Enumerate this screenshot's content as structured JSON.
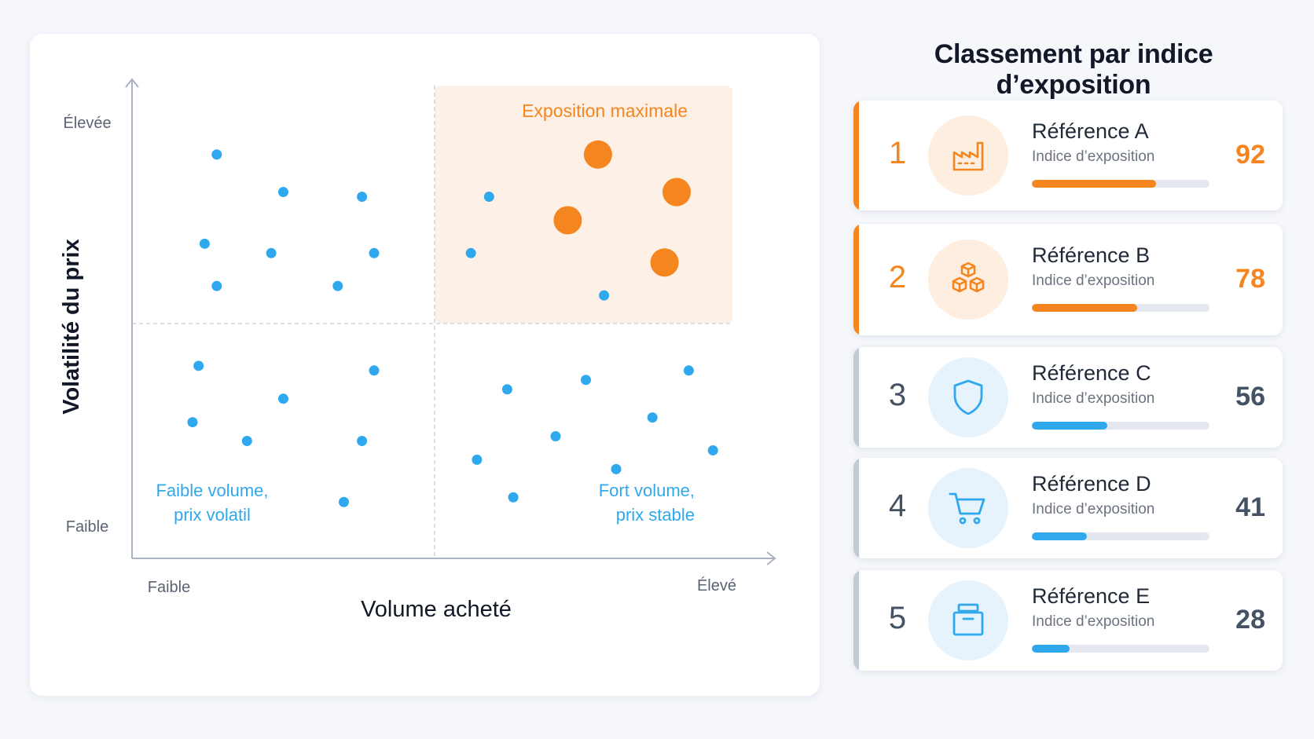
{
  "colors": {
    "accent": "#f5851f",
    "point": "#2fa8ee",
    "highlight_zone": "#fdf0e6",
    "neutral": "#455263",
    "axis": "#aab3c2"
  },
  "chart_data": {
    "type": "scatter",
    "xlabel": "Volume acheté",
    "ylabel": "Volatilité du prix",
    "x_ticks": [
      "Faible",
      "Élevé"
    ],
    "y_ticks": [
      "Élevée",
      "Faible"
    ],
    "xlim": [
      0,
      100
    ],
    "ylim": [
      0,
      100
    ],
    "grid": false,
    "quadrant_split": {
      "x": 50,
      "y": 50
    },
    "quadrant_labels": {
      "top_right": "Exposition maximale",
      "bottom_left_line1": "Faible volume,",
      "bottom_left_line2": "prix volatil",
      "bottom_right_line1": "Fort volume,",
      "bottom_right_line2": "prix stable"
    },
    "series": [
      {
        "role": "standard",
        "points": [
          [
            14,
            86
          ],
          [
            25,
            78
          ],
          [
            38,
            77
          ],
          [
            12,
            67
          ],
          [
            23,
            65
          ],
          [
            40,
            65
          ],
          [
            14,
            58
          ],
          [
            34,
            58
          ],
          [
            59,
            77
          ],
          [
            56,
            65
          ],
          [
            78,
            56
          ],
          [
            11,
            41
          ],
          [
            40,
            40
          ],
          [
            25,
            34
          ],
          [
            10,
            29
          ],
          [
            19,
            25
          ],
          [
            38,
            25
          ],
          [
            35,
            12
          ],
          [
            62,
            36
          ],
          [
            75,
            38
          ],
          [
            92,
            40
          ],
          [
            86,
            30
          ],
          [
            70,
            26
          ],
          [
            57,
            21
          ],
          [
            80,
            19
          ],
          [
            96,
            23
          ],
          [
            63,
            13
          ]
        ]
      },
      {
        "role": "highlighted",
        "points": [
          [
            77,
            86
          ],
          [
            90,
            78
          ],
          [
            72,
            72
          ],
          [
            88,
            63
          ]
        ]
      }
    ]
  },
  "ranking": {
    "title": "Classement par indice d’exposition",
    "items": [
      {
        "rank": "1",
        "name": "Référence A",
        "subtitle": "Indice d’exposition",
        "value": 92,
        "tone": "orange",
        "icon": "factory-icon"
      },
      {
        "rank": "2",
        "name": "Référence B",
        "subtitle": "Indice d’exposition",
        "value": 78,
        "tone": "orange",
        "icon": "boxes-icon"
      },
      {
        "rank": "3",
        "name": "Référence C",
        "subtitle": "Indice d’exposition",
        "value": 56,
        "tone": "blue",
        "icon": "shield-icon"
      },
      {
        "rank": "4",
        "name": "Référence D",
        "subtitle": "Indice d’exposition",
        "value": 41,
        "tone": "blue",
        "icon": "cart-icon"
      },
      {
        "rank": "5",
        "name": "Référence E",
        "subtitle": "Indice d’exposition",
        "value": 28,
        "tone": "blue",
        "icon": "archive-box-icon"
      }
    ]
  }
}
